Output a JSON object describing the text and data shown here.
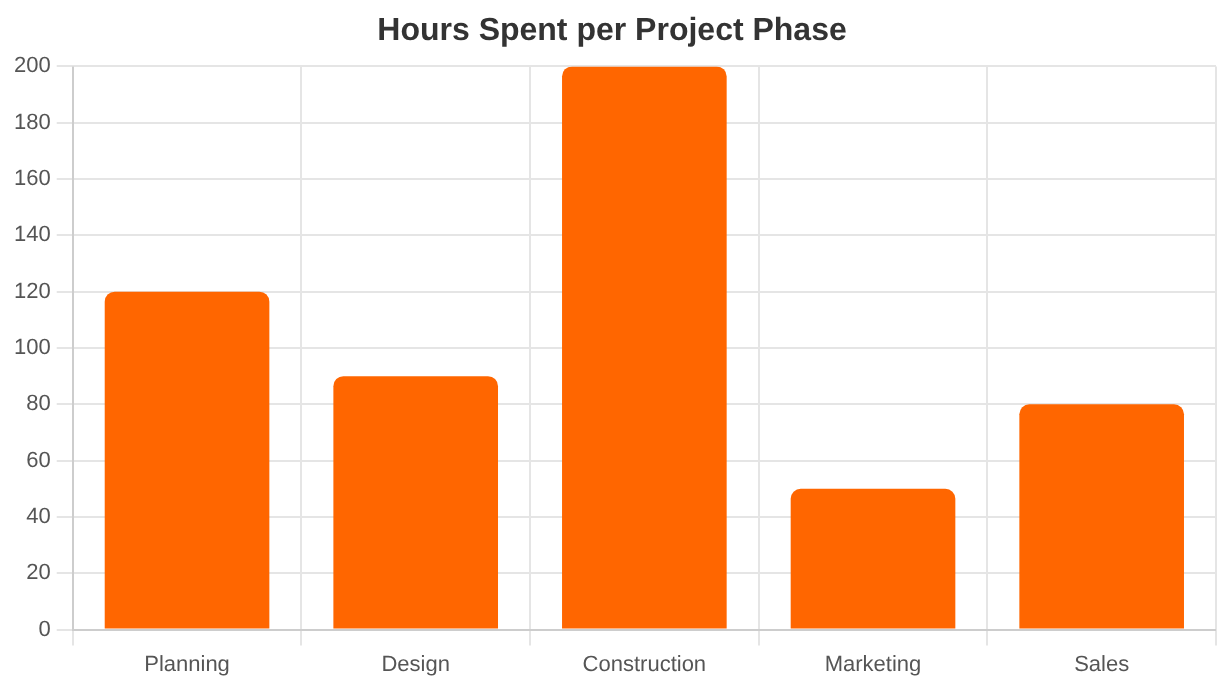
{
  "chart_data": {
    "type": "bar",
    "title": "Hours Spent per Project Phase",
    "categories": [
      "Planning",
      "Design",
      "Construction",
      "Marketing",
      "Sales"
    ],
    "values": [
      120,
      90,
      200,
      50,
      80
    ],
    "color": "#ff6600",
    "ylim": [
      0,
      200
    ],
    "yticks": [
      0,
      20,
      40,
      60,
      80,
      100,
      120,
      140,
      160,
      180,
      200
    ],
    "grid": true,
    "legend": false
  }
}
